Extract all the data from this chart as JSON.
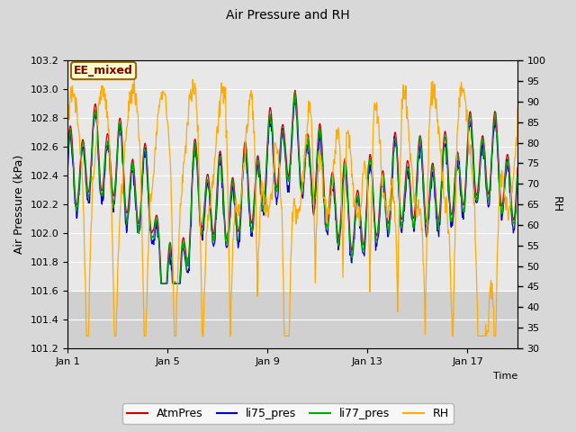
{
  "title": "Air Pressure and RH",
  "xlabel": "Time",
  "ylabel_left": "Air Pressure (kPa)",
  "ylabel_right": "RH",
  "ylim_left": [
    101.2,
    103.2
  ],
  "ylim_right": [
    30,
    100
  ],
  "yticks_left": [
    101.2,
    101.4,
    101.6,
    101.8,
    102.0,
    102.2,
    102.4,
    102.6,
    102.8,
    103.0,
    103.2
  ],
  "yticks_right": [
    30,
    35,
    40,
    45,
    50,
    55,
    60,
    65,
    70,
    75,
    80,
    85,
    90,
    95,
    100
  ],
  "xtick_labels": [
    "Jan 1",
    "Jan 5",
    "Jan 9",
    "Jan 13",
    "Jan 17"
  ],
  "xtick_positions": [
    0,
    4,
    8,
    12,
    16
  ],
  "xlim": [
    0,
    18
  ],
  "annotation_text": "EE_mixed",
  "colors": {
    "AtmPres": "#cc0000",
    "li75_pres": "#0000cc",
    "li77_pres": "#00aa00",
    "RH": "#ffaa00"
  },
  "legend_labels": [
    "AtmPres",
    "li75_pres",
    "li77_pres",
    "RH"
  ],
  "fig_bg_color": "#d8d8d8",
  "plot_bg_color": "#e8e8e8",
  "plot_bg_lower": "#d0d0d0",
  "grid_color": "#ffffff",
  "seed": 42
}
